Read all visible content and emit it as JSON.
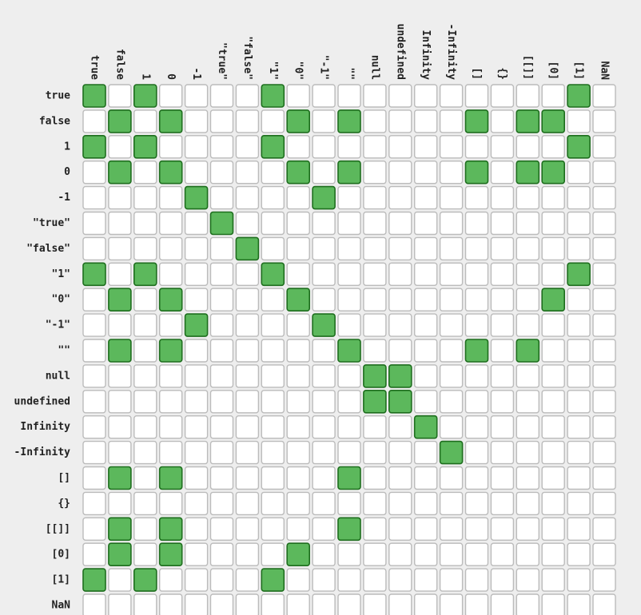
{
  "chart_data": {
    "type": "heatmap",
    "title": "",
    "rows": [
      "true",
      "false",
      "1",
      "0",
      "-1",
      "\"true\"",
      "\"false\"",
      "\"1\"",
      "\"0\"",
      "\"-1\"",
      "\"\"",
      "null",
      "undefined",
      "Infinity",
      "-Infinity",
      "[]",
      "{}",
      "[[]]",
      "[0]",
      "[1]",
      "NaN"
    ],
    "columns": [
      "true",
      "false",
      "1",
      "0",
      "-1",
      "\"true\"",
      "\"false\"",
      "\"1\"",
      "\"0\"",
      "\"-1\"",
      "\"\"",
      "null",
      "undefined",
      "Infinity",
      "-Infinity",
      "[]",
      "{}",
      "[[]]",
      "[0]",
      "[1]",
      "NaN"
    ],
    "values": [
      [
        1,
        0,
        1,
        0,
        0,
        0,
        0,
        1,
        0,
        0,
        0,
        0,
        0,
        0,
        0,
        0,
        0,
        0,
        0,
        1,
        0
      ],
      [
        0,
        1,
        0,
        1,
        0,
        0,
        0,
        0,
        1,
        0,
        1,
        0,
        0,
        0,
        0,
        1,
        0,
        1,
        1,
        0,
        0
      ],
      [
        1,
        0,
        1,
        0,
        0,
        0,
        0,
        1,
        0,
        0,
        0,
        0,
        0,
        0,
        0,
        0,
        0,
        0,
        0,
        1,
        0
      ],
      [
        0,
        1,
        0,
        1,
        0,
        0,
        0,
        0,
        1,
        0,
        1,
        0,
        0,
        0,
        0,
        1,
        0,
        1,
        1,
        0,
        0
      ],
      [
        0,
        0,
        0,
        0,
        1,
        0,
        0,
        0,
        0,
        1,
        0,
        0,
        0,
        0,
        0,
        0,
        0,
        0,
        0,
        0,
        0
      ],
      [
        0,
        0,
        0,
        0,
        0,
        1,
        0,
        0,
        0,
        0,
        0,
        0,
        0,
        0,
        0,
        0,
        0,
        0,
        0,
        0,
        0
      ],
      [
        0,
        0,
        0,
        0,
        0,
        0,
        1,
        0,
        0,
        0,
        0,
        0,
        0,
        0,
        0,
        0,
        0,
        0,
        0,
        0,
        0
      ],
      [
        1,
        0,
        1,
        0,
        0,
        0,
        0,
        1,
        0,
        0,
        0,
        0,
        0,
        0,
        0,
        0,
        0,
        0,
        0,
        1,
        0
      ],
      [
        0,
        1,
        0,
        1,
        0,
        0,
        0,
        0,
        1,
        0,
        0,
        0,
        0,
        0,
        0,
        0,
        0,
        0,
        1,
        0,
        0
      ],
      [
        0,
        0,
        0,
        0,
        1,
        0,
        0,
        0,
        0,
        1,
        0,
        0,
        0,
        0,
        0,
        0,
        0,
        0,
        0,
        0,
        0
      ],
      [
        0,
        1,
        0,
        1,
        0,
        0,
        0,
        0,
        0,
        0,
        1,
        0,
        0,
        0,
        0,
        1,
        0,
        1,
        0,
        0,
        0
      ],
      [
        0,
        0,
        0,
        0,
        0,
        0,
        0,
        0,
        0,
        0,
        0,
        1,
        1,
        0,
        0,
        0,
        0,
        0,
        0,
        0,
        0
      ],
      [
        0,
        0,
        0,
        0,
        0,
        0,
        0,
        0,
        0,
        0,
        0,
        1,
        1,
        0,
        0,
        0,
        0,
        0,
        0,
        0,
        0
      ],
      [
        0,
        0,
        0,
        0,
        0,
        0,
        0,
        0,
        0,
        0,
        0,
        0,
        0,
        1,
        0,
        0,
        0,
        0,
        0,
        0,
        0
      ],
      [
        0,
        0,
        0,
        0,
        0,
        0,
        0,
        0,
        0,
        0,
        0,
        0,
        0,
        0,
        1,
        0,
        0,
        0,
        0,
        0,
        0
      ],
      [
        0,
        1,
        0,
        1,
        0,
        0,
        0,
        0,
        0,
        0,
        1,
        0,
        0,
        0,
        0,
        0,
        0,
        0,
        0,
        0,
        0
      ],
      [
        0,
        0,
        0,
        0,
        0,
        0,
        0,
        0,
        0,
        0,
        0,
        0,
        0,
        0,
        0,
        0,
        0,
        0,
        0,
        0,
        0
      ],
      [
        0,
        1,
        0,
        1,
        0,
        0,
        0,
        0,
        0,
        0,
        1,
        0,
        0,
        0,
        0,
        0,
        0,
        0,
        0,
        0,
        0
      ],
      [
        0,
        1,
        0,
        1,
        0,
        0,
        0,
        0,
        1,
        0,
        0,
        0,
        0,
        0,
        0,
        0,
        0,
        0,
        0,
        0,
        0
      ],
      [
        1,
        0,
        1,
        0,
        0,
        0,
        0,
        1,
        0,
        0,
        0,
        0,
        0,
        0,
        0,
        0,
        0,
        0,
        0,
        0,
        0
      ],
      [
        0,
        0,
        0,
        0,
        0,
        0,
        0,
        0,
        0,
        0,
        0,
        0,
        0,
        0,
        0,
        0,
        0,
        0,
        0,
        0,
        0
      ]
    ],
    "colors": {
      "background": "#eeeeee",
      "true_fill": "#5cb85c",
      "true_stroke": "#1e6e1e",
      "false_fill": "#ffffff",
      "false_stroke": "#bbbbbb",
      "label": "#222222"
    }
  }
}
